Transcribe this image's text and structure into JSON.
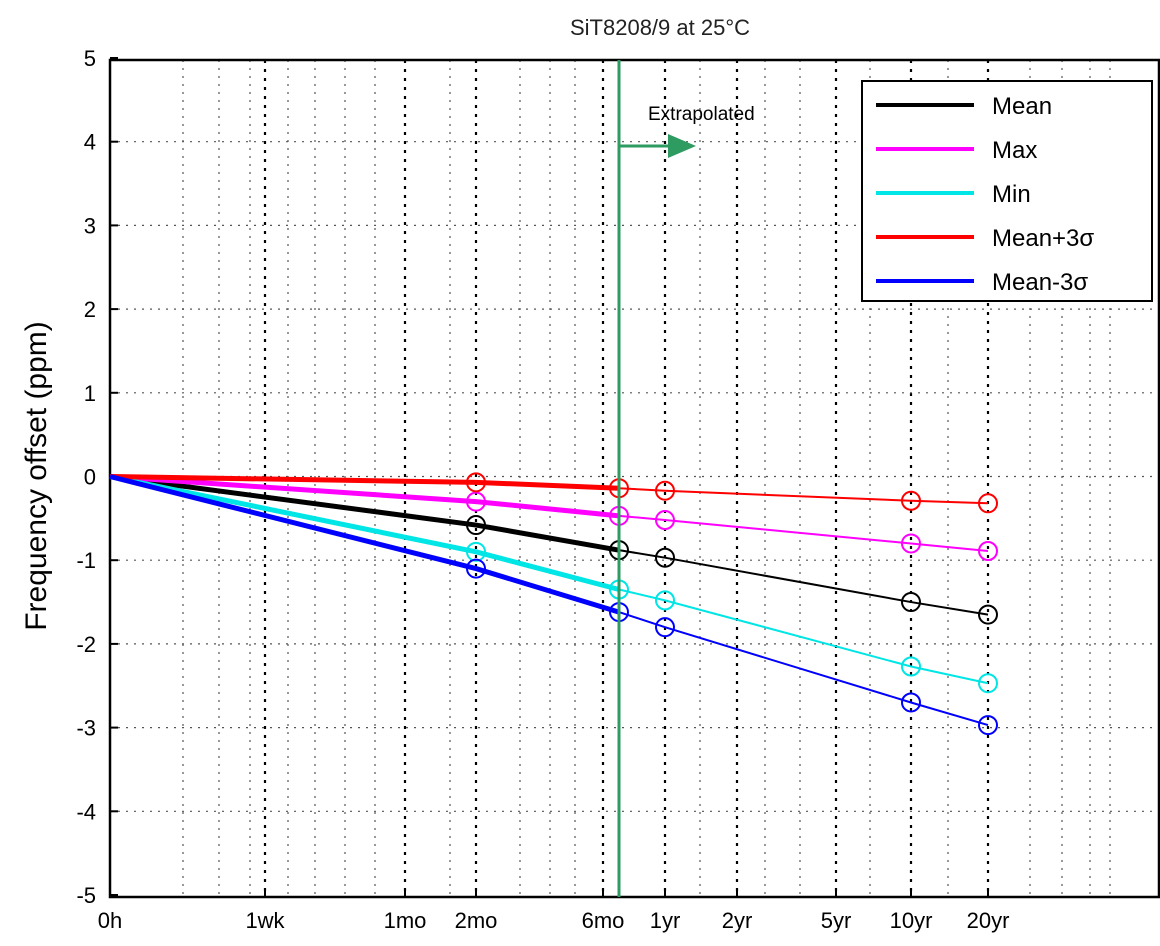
{
  "chart_data": {
    "type": "line",
    "title": "SiT8208/9 at 25°C",
    "xlabel": "",
    "ylabel": "Frequency offset (ppm)",
    "x_scale": "log-like time axis",
    "x_ticks": [
      "0h",
      "1wk",
      "1mo",
      "2mo",
      "6mo",
      "1yr",
      "2yr",
      "5yr",
      "10yr",
      "20yr"
    ],
    "y_ticks": [
      "5",
      "4",
      "3",
      "2",
      "1",
      "0",
      "-1",
      "-2",
      "-3",
      "-4",
      "-5"
    ],
    "ylim": [
      -5,
      5
    ],
    "grid": true,
    "legend_position": "top-right",
    "annotation": {
      "text": "Extrapolated",
      "at_x": "6mo"
    },
    "marker_x": [
      "2mo",
      "6mo",
      "1yr",
      "10yr",
      "20yr"
    ],
    "series": [
      {
        "name": "Mean",
        "color": "#000000",
        "values": [
          0,
          -0.58,
          -0.88,
          -0.97,
          -1.5,
          -1.65
        ]
      },
      {
        "name": "Max",
        "color": "#ff00ff",
        "values": [
          0,
          -0.3,
          -0.47,
          -0.52,
          -0.8,
          -0.89
        ]
      },
      {
        "name": "Min",
        "color": "#00e5e5",
        "values": [
          0,
          -0.9,
          -1.35,
          -1.48,
          -2.27,
          -2.47
        ]
      },
      {
        "name": "Mean+3σ",
        "color": "#ff0000",
        "values": [
          0,
          -0.07,
          -0.14,
          -0.17,
          -0.29,
          -0.32
        ]
      },
      {
        "name": "Mean-3σ",
        "color": "#0000ff",
        "values": [
          0,
          -1.1,
          -1.62,
          -1.8,
          -2.7,
          -2.97
        ]
      }
    ],
    "x_values": [
      "0h",
      "2mo",
      "6mo",
      "1yr",
      "10yr",
      "20yr"
    ]
  },
  "colors": {
    "annotation_line": "#2e9b61",
    "grid": "#000000"
  }
}
